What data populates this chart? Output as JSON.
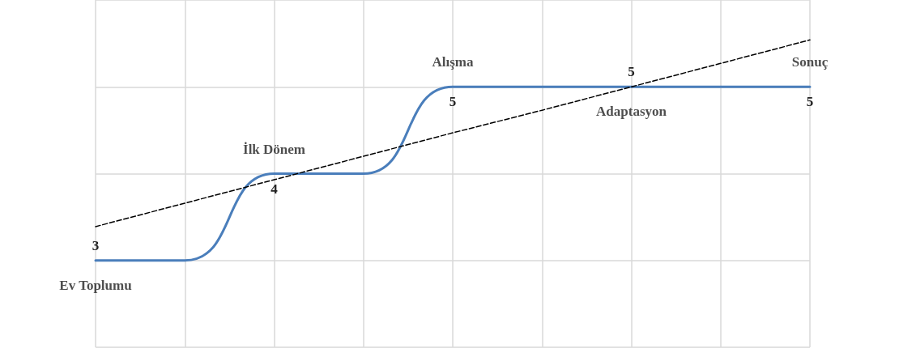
{
  "chart_data": {
    "type": "line",
    "categories": [
      null,
      null,
      null,
      null,
      null,
      null,
      null,
      null,
      null
    ],
    "series": [
      {
        "color": "#4a7ebb",
        "values": [
          3,
          3,
          4,
          4,
          5,
          5,
          5,
          5,
          5
        ],
        "value_labels": [
          "3",
          null,
          "4",
          null,
          "5",
          null,
          "5",
          null,
          "5"
        ]
      },
      {
        "type": "line",
        "color": "#000000",
        "line_style": "dashed",
        "values": [
          3.39,
          3.66,
          3.93,
          4.2,
          4.47,
          4.73,
          5.0,
          5.27,
          5.54
        ]
      }
    ],
    "annotations": [
      "Ev Toplumu",
      "İlk Dönem",
      "Alışma",
      "Adaptasyon",
      "Sonuç"
    ],
    "ylim": [
      2,
      6
    ],
    "yticks": [
      2,
      3,
      4,
      5,
      6
    ],
    "grid": true,
    "tick_labels": false,
    "line_style": "solid"
  }
}
